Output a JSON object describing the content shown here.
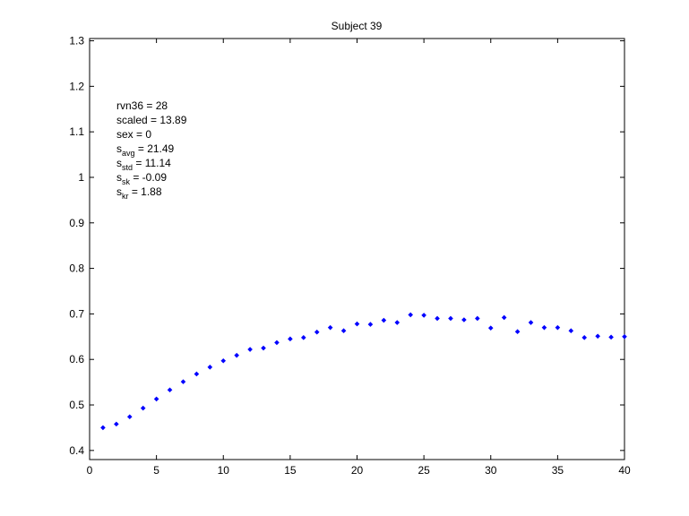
{
  "chart_data": {
    "type": "scatter",
    "title": "Subject 39",
    "xlabel": "",
    "ylabel": "",
    "xlim": [
      0,
      40
    ],
    "ylim": [
      0.38,
      1.305
    ],
    "xticks": [
      0,
      5,
      10,
      15,
      20,
      25,
      30,
      35,
      40
    ],
    "yticks": [
      0.4,
      0.5,
      0.6,
      0.7,
      0.8,
      0.9,
      1,
      1.1,
      1.2,
      1.3
    ],
    "grid": false,
    "marker_color": "#0000ff",
    "series": [
      {
        "x": [
          1,
          2,
          3,
          4,
          5,
          6,
          7,
          8,
          9,
          10,
          11,
          12,
          13,
          14,
          15,
          16,
          17,
          18,
          19,
          20,
          21,
          22,
          23,
          24,
          25,
          26,
          27,
          28,
          29,
          30,
          31,
          32,
          33,
          34,
          35,
          36,
          37,
          38,
          39,
          40
        ],
        "y": [
          0.45,
          0.458,
          0.474,
          0.493,
          0.513,
          0.533,
          0.551,
          0.568,
          0.583,
          0.597,
          0.609,
          0.622,
          0.625,
          0.637,
          0.645,
          0.648,
          0.66,
          0.67,
          0.663,
          0.678,
          0.677,
          0.686,
          0.681,
          0.698,
          0.697,
          0.69,
          0.69,
          0.687,
          0.69,
          0.669,
          0.692,
          0.661,
          0.681,
          0.67,
          0.67,
          0.663,
          0.648,
          0.651,
          0.649,
          0.65
        ]
      }
    ],
    "annotations": [
      {
        "base": "rvn36",
        "sub": "",
        "rest": " = 28"
      },
      {
        "base": "scaled",
        "sub": "",
        "rest": " = 13.89"
      },
      {
        "base": "sex",
        "sub": "",
        "rest": "   = 0"
      },
      {
        "base": "s",
        "sub": "avg",
        "rest": " = 21.49"
      },
      {
        "base": "s",
        "sub": "std",
        "rest": " = 11.14"
      },
      {
        "base": "s",
        "sub": "sk",
        "rest": " = -0.09"
      },
      {
        "base": "s",
        "sub": "kr",
        "rest": " = 1.88"
      }
    ]
  }
}
